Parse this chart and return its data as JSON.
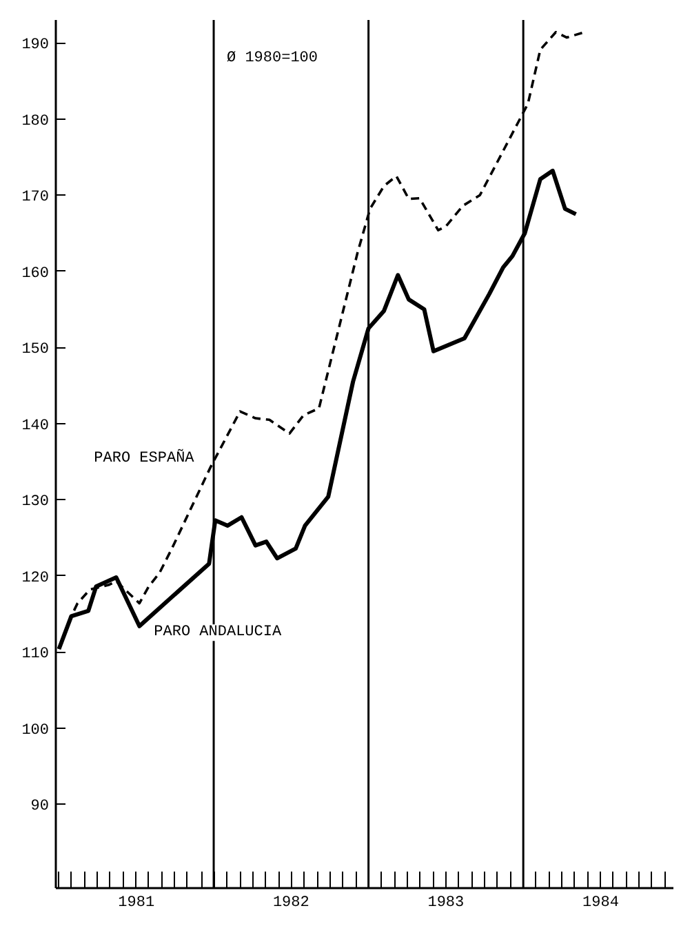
{
  "chart_data": {
    "type": "line",
    "annotations": [
      "Ø 1980=100"
    ],
    "xlim": [
      1980.98,
      1984.97
    ],
    "ylim": [
      79,
      193
    ],
    "yticks": [
      90,
      100,
      110,
      120,
      130,
      140,
      150,
      160,
      170,
      180,
      190
    ],
    "xticks": [
      {
        "value": 1981.0,
        "label": null
      },
      {
        "value": 1981.08,
        "label": null
      },
      {
        "value": 1981.17,
        "label": null
      },
      {
        "value": 1981.25,
        "label": null
      },
      {
        "value": 1981.33,
        "label": null
      },
      {
        "value": 1981.42,
        "label": null
      },
      {
        "value": 1981.5,
        "label": "1981"
      },
      {
        "value": 1981.58,
        "label": null
      },
      {
        "value": 1981.67,
        "label": null
      },
      {
        "value": 1981.75,
        "label": null
      },
      {
        "value": 1981.83,
        "label": null
      },
      {
        "value": 1981.92,
        "label": null
      },
      {
        "value": 1982.0,
        "label": null
      },
      {
        "value": 1982.08,
        "label": null
      },
      {
        "value": 1982.17,
        "label": null
      },
      {
        "value": 1982.25,
        "label": null
      },
      {
        "value": 1982.33,
        "label": null
      },
      {
        "value": 1982.42,
        "label": null
      },
      {
        "value": 1982.5,
        "label": "1982"
      },
      {
        "value": 1982.58,
        "label": null
      },
      {
        "value": 1982.67,
        "label": null
      },
      {
        "value": 1982.75,
        "label": null
      },
      {
        "value": 1982.83,
        "label": null
      },
      {
        "value": 1982.92,
        "label": null
      },
      {
        "value": 1983.0,
        "label": null
      },
      {
        "value": 1983.08,
        "label": null
      },
      {
        "value": 1983.17,
        "label": null
      },
      {
        "value": 1983.25,
        "label": null
      },
      {
        "value": 1983.33,
        "label": null
      },
      {
        "value": 1983.42,
        "label": null
      },
      {
        "value": 1983.5,
        "label": "1983"
      },
      {
        "value": 1983.58,
        "label": null
      },
      {
        "value": 1983.67,
        "label": null
      },
      {
        "value": 1983.75,
        "label": null
      },
      {
        "value": 1983.83,
        "label": null
      },
      {
        "value": 1983.92,
        "label": null
      },
      {
        "value": 1984.0,
        "label": null
      },
      {
        "value": 1984.08,
        "label": null
      },
      {
        "value": 1984.17,
        "label": null
      },
      {
        "value": 1984.25,
        "label": null
      },
      {
        "value": 1984.33,
        "label": null
      },
      {
        "value": 1984.42,
        "label": null
      },
      {
        "value": 1984.5,
        "label": "1984"
      },
      {
        "value": 1984.58,
        "label": null
      },
      {
        "value": 1984.67,
        "label": null
      },
      {
        "value": 1984.75,
        "label": null
      },
      {
        "value": 1984.83,
        "label": null
      },
      {
        "value": 1984.92,
        "label": null
      }
    ],
    "grid": false,
    "marker": "none",
    "ref_lines": [
      {
        "axis": "x",
        "value": 1982.0,
        "label": null,
        "color": "#000000"
      },
      {
        "axis": "x",
        "value": 1983.0,
        "label": null,
        "color": "#000000"
      },
      {
        "axis": "x",
        "value": 1984.0,
        "label": null,
        "color": "#000000"
      }
    ],
    "series": [
      {
        "name": "PARO ESPAÑA",
        "color": "#000000",
        "line_style": "dashed",
        "x": [
          1981.0,
          1981.08,
          1981.12,
          1981.2,
          1981.32,
          1981.37,
          1981.52,
          1981.58,
          1981.65,
          1981.73,
          1981.98,
          1982.17,
          1982.27,
          1982.36,
          1982.49,
          1982.58,
          1982.68,
          1982.93,
          1983.01,
          1983.1,
          1983.18,
          1983.26,
          1983.33,
          1983.45,
          1983.5,
          1983.61,
          1983.72,
          1984.03,
          1984.11,
          1984.21,
          1984.28,
          1984.38
        ],
        "values": [
          110.4,
          114.7,
          116.4,
          118.2,
          118.8,
          119.3,
          116.4,
          118.6,
          120.4,
          123.6,
          134.3,
          141.6,
          140.7,
          140.5,
          138.7,
          141.1,
          142,
          162.5,
          168.2,
          171.2,
          172.5,
          169.5,
          169.6,
          165.4,
          165.9,
          168.6,
          170,
          182,
          189.1,
          191.4,
          190.7,
          191.3
        ]
      },
      {
        "name": "PARO ANDALUCIA",
        "color": "#000000",
        "line_style": "solid",
        "x": [
          1981.0,
          1981.08,
          1981.19,
          1981.24,
          1981.37,
          1981.52,
          1981.97,
          1982.01,
          1982.09,
          1982.18,
          1982.27,
          1982.34,
          1982.41,
          1982.53,
          1982.59,
          1982.74,
          1982.9,
          1983.0,
          1983.1,
          1983.19,
          1983.26,
          1983.36,
          1983.42,
          1983.62,
          1983.78,
          1983.87,
          1983.93,
          1984.01,
          1984.11,
          1984.19,
          1984.27,
          1984.34
        ],
        "values": [
          110.4,
          114.7,
          115.4,
          118.6,
          119.8,
          113.4,
          121.6,
          127.3,
          126.6,
          127.7,
          124,
          124.5,
          122.3,
          123.6,
          126.6,
          130.4,
          145.5,
          152.5,
          154.8,
          159.5,
          156.3,
          155,
          149.5,
          151.2,
          157,
          160.5,
          162,
          165,
          172.1,
          173.2,
          168.2,
          167.5
        ]
      }
    ]
  }
}
